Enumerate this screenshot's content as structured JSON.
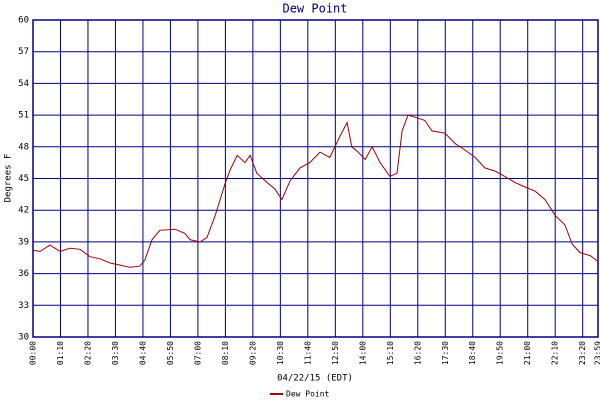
{
  "chart_data": {
    "type": "line",
    "title": "Dew Point",
    "xlabel": "04/22/15 (EDT)",
    "ylabel": "Degrees F",
    "x": [
      0,
      18,
      43,
      69,
      94,
      120,
      145,
      171,
      196,
      222,
      247,
      272,
      285,
      303,
      323,
      362,
      387,
      400,
      425,
      443,
      464,
      489,
      502,
      520,
      540,
      553,
      570,
      591,
      616,
      634,
      655,
      680,
      705,
      731,
      756,
      782,
      800,
      812,
      828,
      846,
      864,
      884,
      909,
      927,
      940,
      955,
      973,
      998,
      1016,
      1049,
      1075,
      1100,
      1126,
      1151,
      1177,
      1202,
      1228,
      1253,
      1279,
      1304,
      1330,
      1355,
      1373,
      1393,
      1419,
      1437
    ],
    "series": [
      {
        "name": "Dew Point",
        "color": "#a00000",
        "values": [
          38.2,
          38.1,
          38.7,
          38.1,
          38.4,
          38.3,
          37.6,
          37.4,
          37.0,
          36.8,
          36.6,
          36.7,
          37.3,
          39.2,
          40.1,
          40.2,
          39.8,
          39.2,
          39.0,
          39.4,
          41.5,
          44.5,
          45.8,
          47.2,
          46.5,
          47.2,
          45.5,
          44.8,
          44.0,
          43.0,
          44.8,
          46.0,
          46.5,
          47.5,
          47.0,
          49.0,
          50.3,
          48.0,
          47.5,
          46.8,
          48.0,
          46.5,
          45.2,
          45.5,
          49.5,
          51.0,
          50.8,
          50.5,
          49.5,
          49.3,
          48.3,
          47.7,
          47.0,
          46.0,
          45.7,
          45.2,
          44.6,
          44.2,
          43.8,
          43.0,
          41.5,
          40.6,
          38.8,
          38.0,
          37.7,
          37.2
        ]
      }
    ],
    "xlim": [
      0,
      1439
    ],
    "xticks": [
      {
        "value": 0,
        "label": "00:00"
      },
      {
        "value": 70,
        "label": "01:10"
      },
      {
        "value": 140,
        "label": "02:20"
      },
      {
        "value": 210,
        "label": "03:30"
      },
      {
        "value": 280,
        "label": "04:40"
      },
      {
        "value": 350,
        "label": "05:50"
      },
      {
        "value": 420,
        "label": "07:00"
      },
      {
        "value": 490,
        "label": "08:10"
      },
      {
        "value": 560,
        "label": "09:20"
      },
      {
        "value": 630,
        "label": "10:30"
      },
      {
        "value": 700,
        "label": "11:40"
      },
      {
        "value": 770,
        "label": "12:50"
      },
      {
        "value": 840,
        "label": "14:00"
      },
      {
        "value": 910,
        "label": "15:10"
      },
      {
        "value": 980,
        "label": "16:20"
      },
      {
        "value": 1050,
        "label": "17:30"
      },
      {
        "value": 1120,
        "label": "18:40"
      },
      {
        "value": 1190,
        "label": "19:50"
      },
      {
        "value": 1260,
        "label": "21:00"
      },
      {
        "value": 1330,
        "label": "22:10"
      },
      {
        "value": 1400,
        "label": "23:20"
      },
      {
        "value": 1439,
        "label": "23:59"
      }
    ],
    "ylim": [
      30,
      60
    ],
    "yticks": [
      30,
      33,
      36,
      39,
      42,
      45,
      48,
      51,
      54,
      57,
      60
    ],
    "grid": true,
    "grid_color": "#000080"
  }
}
